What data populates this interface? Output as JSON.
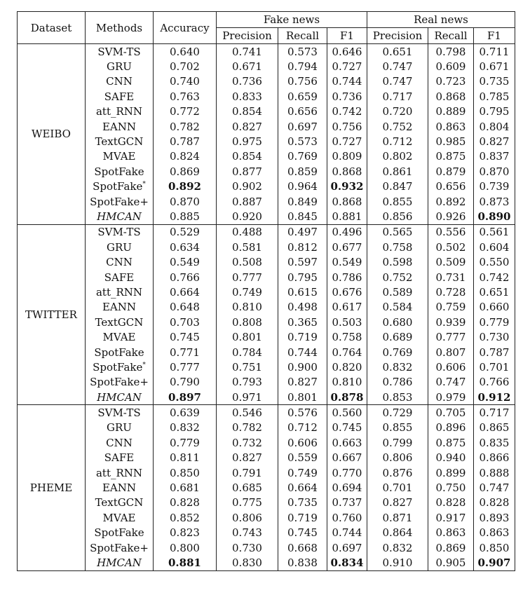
{
  "header": {
    "dataset": "Dataset",
    "methods": "Methods",
    "accuracy": "Accuracy",
    "fake_news": "Fake news",
    "real_news": "Real news",
    "precision": "Precision",
    "recall": "Recall",
    "f1": "F1"
  },
  "groups": [
    {
      "name": "WEIBO",
      "rows": [
        {
          "method": "SVM-TS",
          "acc": "0.640",
          "fp": "0.741",
          "fr": "0.573",
          "ff": "0.646",
          "rp": "0.651",
          "rr": "0.798",
          "rf": "0.711"
        },
        {
          "method": "GRU",
          "acc": "0.702",
          "fp": "0.671",
          "fr": "0.794",
          "ff": "0.727",
          "rp": "0.747",
          "rr": "0.609",
          "rf": "0.671"
        },
        {
          "method": "CNN",
          "acc": "0.740",
          "fp": "0.736",
          "fr": "0.756",
          "ff": "0.744",
          "rp": "0.747",
          "rr": "0.723",
          "rf": "0.735"
        },
        {
          "method": "SAFE",
          "acc": "0.763",
          "fp": "0.833",
          "fr": "0.659",
          "ff": "0.736",
          "rp": "0.717",
          "rr": "0.868",
          "rf": "0.785"
        },
        {
          "method": "att_RNN",
          "acc": "0.772",
          "fp": "0.854",
          "fr": "0.656",
          "ff": "0.742",
          "rp": "0.720",
          "rr": "0.889",
          "rf": "0.795"
        },
        {
          "method": "EANN",
          "acc": "0.782",
          "fp": "0.827",
          "fr": "0.697",
          "ff": "0.756",
          "rp": "0.752",
          "rr": "0.863",
          "rf": "0.804"
        },
        {
          "method": "TextGCN",
          "acc": "0.787",
          "fp": "0.975",
          "fr": "0.573",
          "ff": "0.727",
          "rp": "0.712",
          "rr": "0.985",
          "rf": "0.827"
        },
        {
          "method": "MVAE",
          "acc": "0.824",
          "fp": "0.854",
          "fr": "0.769",
          "ff": "0.809",
          "rp": "0.802",
          "rr": "0.875",
          "rf": "0.837"
        },
        {
          "method": "SpotFake",
          "acc": "0.869",
          "fp": "0.877",
          "fr": "0.859",
          "ff": "0.868",
          "rp": "0.861",
          "rr": "0.879",
          "rf": "0.870"
        },
        {
          "method": "SpotFake",
          "sup": "*",
          "acc": "0.892",
          "fp": "0.902",
          "fr": "0.964",
          "ff": "0.932",
          "rp": "0.847",
          "rr": "0.656",
          "rf": "0.739",
          "bold": [
            "acc",
            "ff"
          ]
        },
        {
          "method": "SpotFake+",
          "acc": "0.870",
          "fp": "0.887",
          "fr": "0.849",
          "ff": "0.868",
          "rp": "0.855",
          "rr": "0.892",
          "rf": "0.873"
        },
        {
          "method": "HMCAN",
          "italic": true,
          "acc": "0.885",
          "fp": "0.920",
          "fr": "0.845",
          "ff": "0.881",
          "rp": "0.856",
          "rr": "0.926",
          "rf": "0.890",
          "bold": [
            "rf"
          ]
        }
      ]
    },
    {
      "name": "TWITTER",
      "rows": [
        {
          "method": "SVM-TS",
          "acc": "0.529",
          "fp": "0.488",
          "fr": "0.497",
          "ff": "0.496",
          "rp": "0.565",
          "rr": "0.556",
          "rf": "0.561"
        },
        {
          "method": "GRU",
          "acc": "0.634",
          "fp": "0.581",
          "fr": "0.812",
          "ff": "0.677",
          "rp": "0.758",
          "rr": "0.502",
          "rf": "0.604"
        },
        {
          "method": "CNN",
          "acc": "0.549",
          "fp": "0.508",
          "fr": "0.597",
          "ff": "0.549",
          "rp": "0.598",
          "rr": "0.509",
          "rf": "0.550"
        },
        {
          "method": "SAFE",
          "acc": "0.766",
          "fp": "0.777",
          "fr": "0.795",
          "ff": "0.786",
          "rp": "0.752",
          "rr": "0.731",
          "rf": "0.742"
        },
        {
          "method": "att_RNN",
          "acc": "0.664",
          "fp": "0.749",
          "fr": "0.615",
          "ff": "0.676",
          "rp": "0.589",
          "rr": "0.728",
          "rf": "0.651"
        },
        {
          "method": "EANN",
          "acc": "0.648",
          "fp": "0.810",
          "fr": "0.498",
          "ff": "0.617",
          "rp": "0.584",
          "rr": "0.759",
          "rf": "0.660"
        },
        {
          "method": "TextGCN",
          "acc": "0.703",
          "fp": "0.808",
          "fr": "0.365",
          "ff": "0.503",
          "rp": "0.680",
          "rr": "0.939",
          "rf": "0.779"
        },
        {
          "method": "MVAE",
          "acc": "0.745",
          "fp": "0.801",
          "fr": "0.719",
          "ff": "0.758",
          "rp": "0.689",
          "rr": "0.777",
          "rf": "0.730"
        },
        {
          "method": "SpotFake",
          "acc": "0.771",
          "fp": "0.784",
          "fr": "0.744",
          "ff": "0.764",
          "rp": "0.769",
          "rr": "0.807",
          "rf": "0.787"
        },
        {
          "method": "SpotFake",
          "sup": "*",
          "acc": "0.777",
          "fp": "0.751",
          "fr": "0.900",
          "ff": "0.820",
          "rp": "0.832",
          "rr": "0.606",
          "rf": "0.701"
        },
        {
          "method": "SpotFake+",
          "acc": "0.790",
          "fp": "0.793",
          "fr": "0.827",
          "ff": "0.810",
          "rp": "0.786",
          "rr": "0.747",
          "rf": "0.766"
        },
        {
          "method": "HMCAN",
          "italic": true,
          "acc": "0.897",
          "fp": "0.971",
          "fr": "0.801",
          "ff": "0.878",
          "rp": "0.853",
          "rr": "0.979",
          "rf": "0.912",
          "bold": [
            "acc",
            "ff",
            "rf"
          ]
        }
      ]
    },
    {
      "name": "PHEME",
      "rows": [
        {
          "method": "SVM-TS",
          "acc": "0.639",
          "fp": "0.546",
          "fr": "0.576",
          "ff": "0.560",
          "rp": "0.729",
          "rr": "0.705",
          "rf": "0.717"
        },
        {
          "method": "GRU",
          "acc": "0.832",
          "fp": "0.782",
          "fr": "0.712",
          "ff": "0.745",
          "rp": "0.855",
          "rr": "0.896",
          "rf": "0.865"
        },
        {
          "method": "CNN",
          "acc": "0.779",
          "fp": "0.732",
          "fr": "0.606",
          "ff": "0.663",
          "rp": "0.799",
          "rr": "0.875",
          "rf": "0.835"
        },
        {
          "method": "SAFE",
          "acc": "0.811",
          "fp": "0.827",
          "fr": "0.559",
          "ff": "0.667",
          "rp": "0.806",
          "rr": "0.940",
          "rf": "0.866"
        },
        {
          "method": "att_RNN",
          "acc": "0.850",
          "fp": "0.791",
          "fr": "0.749",
          "ff": "0.770",
          "rp": "0.876",
          "rr": "0.899",
          "rf": "0.888"
        },
        {
          "method": "EANN",
          "acc": "0.681",
          "fp": "0.685",
          "fr": "0.664",
          "ff": "0.694",
          "rp": "0.701",
          "rr": "0.750",
          "rf": "0.747"
        },
        {
          "method": "TextGCN",
          "acc": "0.828",
          "fp": "0.775",
          "fr": "0.735",
          "ff": "0.737",
          "rp": "0.827",
          "rr": "0.828",
          "rf": "0.828"
        },
        {
          "method": "MVAE",
          "acc": "0.852",
          "fp": "0.806",
          "fr": "0.719",
          "ff": "0.760",
          "rp": "0.871",
          "rr": "0.917",
          "rf": "0.893"
        },
        {
          "method": "SpotFake",
          "acc": "0.823",
          "fp": "0.743",
          "fr": "0.745",
          "ff": "0.744",
          "rp": "0.864",
          "rr": "0.863",
          "rf": "0.863"
        },
        {
          "method": "SpotFake+",
          "acc": "0.800",
          "fp": "0.730",
          "fr": "0.668",
          "ff": "0.697",
          "rp": "0.832",
          "rr": "0.869",
          "rf": "0.850"
        },
        {
          "method": "HMCAN",
          "italic": true,
          "acc": "0.881",
          "fp": "0.830",
          "fr": "0.838",
          "ff": "0.834",
          "rp": "0.910",
          "rr": "0.905",
          "rf": "0.907",
          "bold": [
            "acc",
            "ff",
            "rf"
          ]
        }
      ]
    }
  ]
}
